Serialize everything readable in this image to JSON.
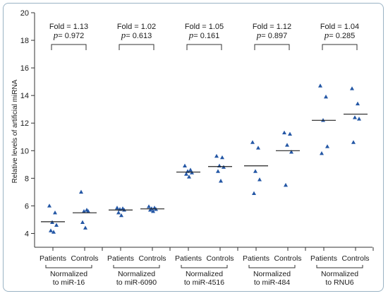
{
  "chart_data": {
    "type": "scatter",
    "ylabel": "Relative levels of artificial miRNA",
    "ylim": [
      3,
      20
    ],
    "yticks": [
      4,
      6,
      8,
      10,
      12,
      14,
      16,
      18,
      20
    ],
    "category_labels": [
      "Patients",
      "Controls"
    ],
    "groups": [
      {
        "label_line1": "Normalized",
        "label_line2": "to miR-16",
        "fold_label": "Fold = 1.13",
        "p_symbol": "p",
        "p_value": "= 0.972",
        "patients": {
          "points": [
            6.0,
            5.5,
            4.8,
            4.6,
            4.2,
            4.1
          ],
          "mean": 4.85
        },
        "controls": {
          "points": [
            7.0,
            5.7,
            5.6,
            5.6,
            4.8,
            4.4
          ],
          "mean": 5.5
        }
      },
      {
        "label_line1": "Normalized",
        "label_line2": "to miR-6090",
        "fold_label": "Fold = 1.02",
        "p_symbol": "p",
        "p_value": "= 0.613",
        "patients": {
          "points": [
            5.85,
            5.8,
            5.75,
            5.7,
            5.5,
            5.3
          ],
          "mean": 5.7
        },
        "controls": {
          "points": [
            5.95,
            5.85,
            5.8,
            5.75,
            5.7,
            5.6
          ],
          "mean": 5.78
        }
      },
      {
        "label_line1": "Normalized",
        "label_line2": "to miR-4516",
        "fold_label": "Fold = 1.05",
        "p_symbol": "p",
        "p_value": "= 0.161",
        "patients": {
          "points": [
            8.9,
            8.6,
            8.5,
            8.4,
            8.3,
            8.1
          ],
          "mean": 8.45
        },
        "controls": {
          "points": [
            9.6,
            9.5,
            8.9,
            8.8,
            8.5,
            7.8
          ],
          "mean": 8.85
        }
      },
      {
        "label_line1": "Normalized",
        "label_line2": "to miR-484",
        "fold_label": "Fold = 1.12",
        "p_symbol": "p",
        "p_value": "= 0.897",
        "patients": {
          "points": [
            10.6,
            10.2,
            8.5,
            7.9,
            6.9
          ],
          "mean": 8.9
        },
        "controls": {
          "points": [
            11.3,
            11.2,
            10.4,
            9.9,
            7.5
          ],
          "mean": 10.0
        }
      },
      {
        "label_line1": "Normalized",
        "label_line2": "to RNU6",
        "fold_label": "Fold = 1.04",
        "p_symbol": "p",
        "p_value": "= 0.285",
        "patients": {
          "points": [
            14.7,
            13.9,
            12.2,
            10.3,
            9.8
          ],
          "mean": 12.2
        },
        "controls": {
          "points": [
            14.5,
            13.4,
            12.4,
            12.3,
            10.6
          ],
          "mean": 12.65
        }
      }
    ],
    "colors": {
      "marker": "#2457a5",
      "line": "#222222",
      "axis": "#333333"
    }
  }
}
